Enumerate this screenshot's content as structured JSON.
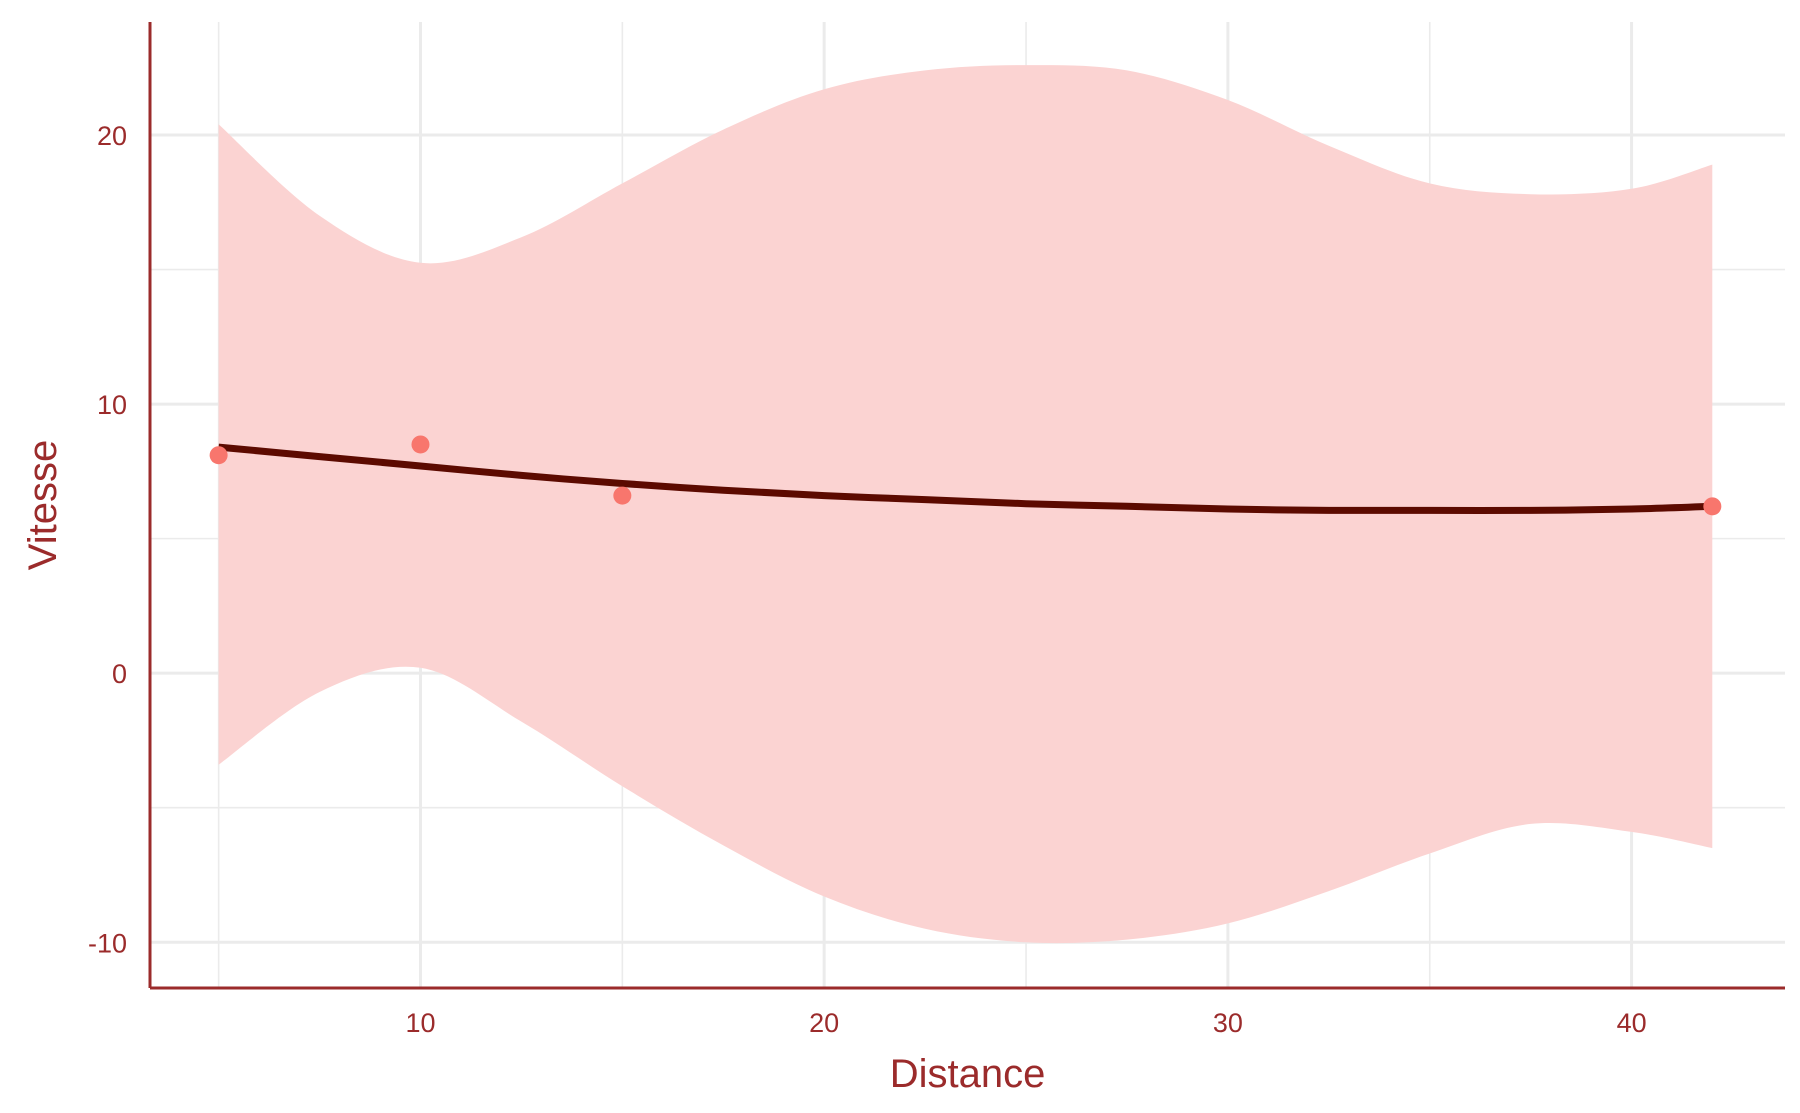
{
  "chart_data": {
    "type": "scatter",
    "title": "",
    "xlabel": "Distance",
    "ylabel": "Vitesse",
    "xlim": [
      3.3,
      43.8
    ],
    "ylim": [
      -11.7,
      24.2
    ],
    "x_ticks": [
      10,
      20,
      30,
      40
    ],
    "x_tick_labels": [
      "10",
      "20",
      "30",
      "40"
    ],
    "y_ticks": [
      -10,
      0,
      10,
      20
    ],
    "y_tick_labels": [
      "-10",
      "0",
      "10",
      "20"
    ],
    "x_minor_ticks": [
      5,
      15,
      25,
      35
    ],
    "y_minor_ticks": [
      -5,
      5,
      15
    ],
    "grid": true,
    "legend": "none",
    "colors": {
      "points": "#f8766d",
      "fit_line": "#5c0a00",
      "confidence_band": "#fbd3d2",
      "axis": "#9b2b2b",
      "grid": "#ebebeb"
    },
    "points": [
      {
        "x": 5,
        "y": 8.1
      },
      {
        "x": 10,
        "y": 8.5
      },
      {
        "x": 15,
        "y": 6.6
      },
      {
        "x": 42,
        "y": 6.2
      }
    ],
    "fit": {
      "method": "smooth",
      "x": [
        5,
        7.5,
        10,
        12.5,
        15,
        17.5,
        20,
        22.5,
        25,
        27.5,
        30,
        32.5,
        35,
        37.5,
        40,
        42
      ],
      "y": [
        8.4,
        8.05,
        7.7,
        7.35,
        7.05,
        6.8,
        6.6,
        6.45,
        6.3,
        6.2,
        6.1,
        6.05,
        6.05,
        6.05,
        6.1,
        6.2
      ],
      "upper": [
        20.4,
        17.0,
        15.25,
        16.2,
        18.2,
        20.2,
        21.7,
        22.4,
        22.6,
        22.4,
        21.3,
        19.6,
        18.2,
        17.8,
        18.0,
        18.9
      ],
      "lower": [
        -3.4,
        -0.7,
        0.2,
        -1.8,
        -4.2,
        -6.4,
        -8.3,
        -9.5,
        -10.0,
        -9.9,
        -9.3,
        -8.1,
        -6.7,
        -5.6,
        -5.9,
        -6.5
      ]
    }
  }
}
